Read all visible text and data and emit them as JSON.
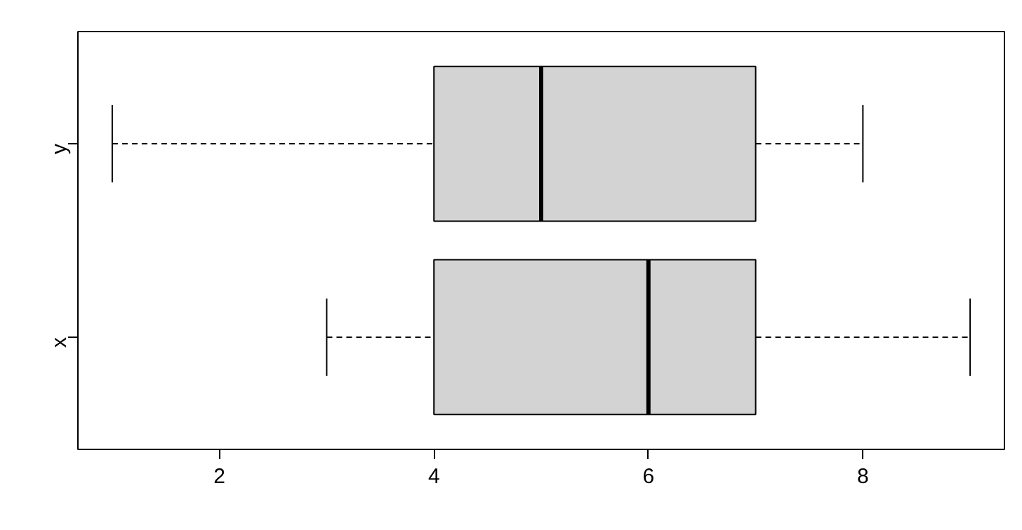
{
  "chart_data": {
    "type": "box",
    "orientation": "horizontal",
    "categories": [
      "y",
      "x"
    ],
    "boxes": [
      {
        "low": 1,
        "q1": 4,
        "median": 5,
        "q3": 7,
        "high": 8
      },
      {
        "low": 3,
        "q1": 4,
        "median": 6,
        "q3": 7,
        "high": 9
      }
    ],
    "color": "#d3d3d3",
    "xlim": [
      0.68,
      9.32
    ],
    "xticks": [
      2,
      4,
      6,
      8
    ],
    "grid": false
  }
}
